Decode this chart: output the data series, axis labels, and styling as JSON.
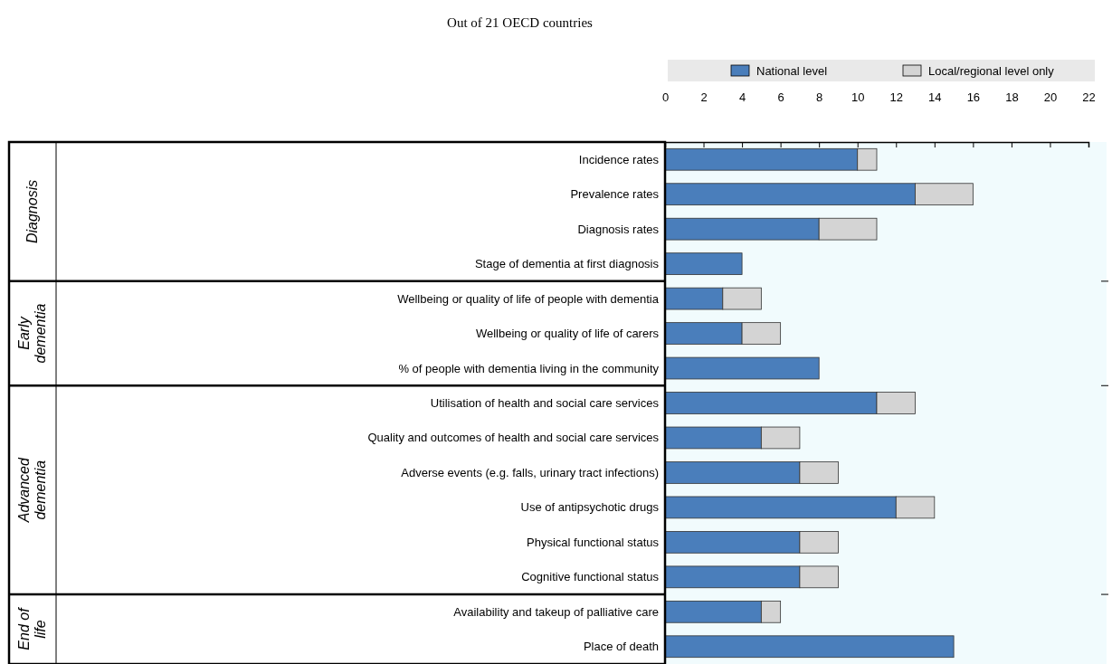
{
  "chart_data": {
    "type": "bar",
    "orientation": "horizontal",
    "stacked": true,
    "title": "Out of 21 OECD countries",
    "categories": [
      "Incidence rates",
      "Prevalence rates",
      "Diagnosis rates",
      "Stage of dementia at first diagnosis",
      "Wellbeing or quality of life of people with dementia",
      "Wellbeing or quality of life of carers",
      "% of people with dementia living in the community",
      "Utilisation of health and social care services",
      "Quality and outcomes of health and social care services",
      "Adverse events (e.g. falls, urinary tract infections)",
      "Use of antipsychotic drugs",
      "Physical functional status",
      "Cognitive functional status",
      "Availability and takeup of palliative care",
      "Place of death"
    ],
    "series": [
      {
        "name": "National level",
        "color": "#4a7ebb",
        "values": [
          10,
          13,
          8,
          4,
          3,
          4,
          8,
          11,
          5,
          7,
          12,
          7,
          7,
          5,
          15
        ]
      },
      {
        "name": "Local/regional level only",
        "color": "#d4d4d4",
        "values": [
          1,
          3,
          3,
          0,
          2,
          2,
          0,
          2,
          2,
          2,
          2,
          2,
          2,
          1,
          0
        ]
      }
    ],
    "xlim": [
      0,
      22
    ],
    "xticks": [
      0,
      2,
      4,
      6,
      8,
      10,
      12,
      14,
      16,
      18,
      20,
      22
    ],
    "legend": "top",
    "annotations": [
      "Diagnosis",
      "Early dementia",
      "Advanced dementia",
      "End of life"
    ]
  }
}
